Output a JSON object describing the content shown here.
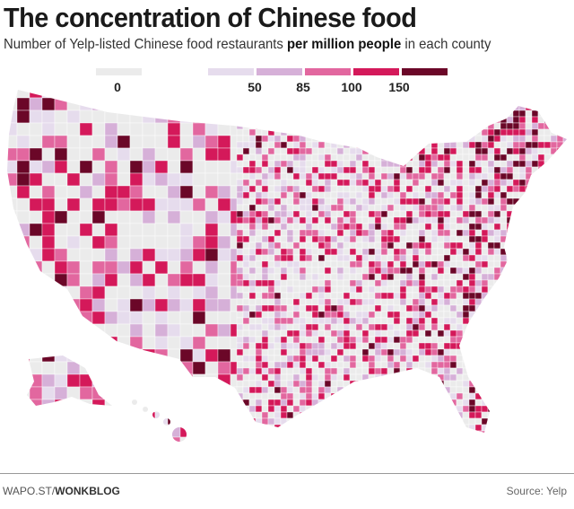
{
  "title": "The concentration of Chinese food",
  "subtitle": {
    "pre": "Number of Yelp-listed Chinese food restaurants ",
    "bold": "per million people",
    "post": " in each county"
  },
  "legend": {
    "zero": {
      "label": "0",
      "color": "#ebebeb"
    },
    "bins": [
      {
        "color": "#e6dced"
      },
      {
        "color": "#d6b0d8"
      },
      {
        "color": "#e2679f"
      },
      {
        "color": "#d4195a"
      },
      {
        "color": "#6b0728"
      }
    ],
    "breaks": [
      "50",
      "85",
      "100",
      "150"
    ]
  },
  "footer": {
    "credit_pre": "WAPO.ST/",
    "credit_bold": "WONKBLOG",
    "source": "Source: Yelp"
  }
}
